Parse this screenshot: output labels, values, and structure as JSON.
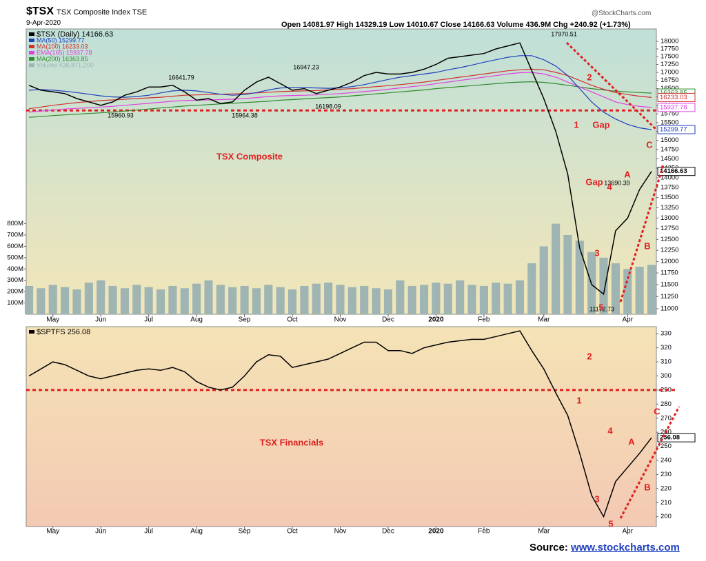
{
  "header": {
    "symbol": "$TSX",
    "name": "TSX Composite Index  TSE",
    "date": "9-Apr-2020",
    "quote": "Open 14081.97  High 14329.19  Low 14010.67  Close 14166.63  Volume 436.9M  Chg +240.92 (+1.73%)",
    "watermark": "@StockCharts.com"
  },
  "footer": {
    "label": "Source:",
    "link": "www.stockcharts.com"
  },
  "chart_data": [
    {
      "type": "line",
      "log": true,
      "grid": false,
      "categories": [
        null,
        null,
        "May",
        null,
        null,
        null,
        "Jun",
        null,
        null,
        null,
        "Jul",
        null,
        null,
        null,
        "Aug",
        null,
        null,
        null,
        "Sep",
        null,
        null,
        null,
        "Oct",
        null,
        null,
        null,
        "Nov",
        null,
        null,
        null,
        "Dec",
        null,
        null,
        null,
        "2020",
        null,
        null,
        null,
        "Feb",
        null,
        null,
        null,
        null,
        "Mar",
        null,
        null,
        null,
        null,
        null,
        null,
        "Apr",
        null,
        null
      ],
      "ylim": [
        10889,
        18416
      ],
      "yticks": [
        11000,
        11250,
        11500,
        11750,
        12000,
        12250,
        12500,
        12750,
        13000,
        13250,
        13500,
        13750,
        14000,
        14250,
        14500,
        14750,
        15000,
        15250,
        15500,
        15750,
        16000,
        16250,
        16500,
        16750,
        17000,
        17250,
        17500,
        17750,
        18000
      ],
      "y2lim": [
        0,
        2520
      ],
      "y2ticks": [
        {
          "value": 100,
          "label": "100M"
        },
        {
          "value": 200,
          "label": "200M"
        },
        {
          "value": 300,
          "label": "300M"
        },
        {
          "value": 400,
          "label": "400M"
        },
        {
          "value": 500,
          "label": "500M"
        },
        {
          "value": 600,
          "label": "600M"
        },
        {
          "value": 700,
          "label": "700M"
        },
        {
          "value": 800,
          "label": "800M"
        }
      ],
      "reference": 15850,
      "series": [
        {
          "name": "Volume 436,871,200",
          "type": "bar",
          "axis": "y2",
          "color": "#9fb5b4",
          "values": [
            250,
            230,
            260,
            240,
            220,
            280,
            300,
            250,
            230,
            260,
            240,
            220,
            250,
            230,
            270,
            300,
            260,
            240,
            250,
            230,
            260,
            240,
            220,
            250,
            270,
            280,
            260,
            240,
            250,
            230,
            220,
            300,
            250,
            260,
            280,
            270,
            300,
            260,
            250,
            280,
            270,
            300,
            450,
            600,
            800,
            700,
            650,
            550,
            500,
            450,
            400,
            420,
            436.87
          ]
        },
        {
          "name": "MA(200) 16363.85",
          "type": "line",
          "color": "#2e8b2e",
          "values": [
            15650,
            15670,
            15700,
            15720,
            15740,
            15760,
            15780,
            15800,
            15830,
            15860,
            15890,
            15920,
            15950,
            15980,
            16000,
            16020,
            16040,
            16060,
            16080,
            16100,
            16120,
            16150,
            16170,
            16190,
            16210,
            16230,
            16250,
            16280,
            16310,
            16340,
            16370,
            16400,
            16430,
            16460,
            16500,
            16530,
            16560,
            16590,
            16620,
            16650,
            16680,
            16700,
            16710,
            16690,
            16650,
            16600,
            16550,
            16500,
            16460,
            16420,
            16400,
            16380,
            16363.85
          ]
        },
        {
          "name": "EMA(165) 15937.78",
          "type": "line",
          "color": "#e040e0",
          "values": [
            15800,
            15830,
            15860,
            15890,
            15910,
            15930,
            15950,
            15970,
            16000,
            16030,
            16060,
            16090,
            16120,
            16140,
            16150,
            16160,
            16170,
            16180,
            16200,
            16230,
            16260,
            16280,
            16290,
            16300,
            16310,
            16330,
            16350,
            16380,
            16410,
            16440,
            16480,
            16520,
            16560,
            16600,
            16650,
            16700,
            16750,
            16800,
            16850,
            16900,
            16950,
            16990,
            17000,
            16950,
            16850,
            16700,
            16550,
            16400,
            16250,
            16100,
            16020,
            15970,
            15937.78
          ]
        },
        {
          "name": "MA(100) 16233.03",
          "type": "line",
          "color": "#d03030",
          "values": [
            15900,
            15950,
            16000,
            16040,
            16080,
            16110,
            16140,
            16160,
            16180,
            16200,
            16220,
            16240,
            16270,
            16300,
            16310,
            16320,
            16330,
            16340,
            16350,
            16370,
            16390,
            16410,
            16420,
            16430,
            16440,
            16460,
            16480,
            16500,
            16530,
            16560,
            16590,
            16620,
            16660,
            16700,
            16750,
            16800,
            16850,
            16900,
            16950,
            17000,
            17050,
            17080,
            17100,
            17080,
            17000,
            16900,
            16750,
            16600,
            16480,
            16380,
            16320,
            16270,
            16233.03
          ]
        },
        {
          "name": "MA(50) 15299.77",
          "type": "line",
          "color": "#1f3fbf",
          "values": [
            16450,
            16470,
            16450,
            16420,
            16380,
            16330,
            16280,
            16250,
            16240,
            16260,
            16300,
            16370,
            16430,
            16450,
            16430,
            16380,
            16330,
            16300,
            16320,
            16380,
            16460,
            16520,
            16530,
            16530,
            16520,
            16510,
            16520,
            16560,
            16620,
            16700,
            16780,
            16850,
            16900,
            16950,
            17000,
            17080,
            17150,
            17230,
            17320,
            17400,
            17480,
            17530,
            17530,
            17400,
            17200,
            16900,
            16500,
            16100,
            15800,
            15600,
            15450,
            15350,
            15299.77
          ]
        },
        {
          "name": "$TSX (Daily) 14166.63",
          "type": "line",
          "color": "#000000",
          "values": [
            16600,
            16450,
            16400,
            16350,
            16200,
            16100,
            16000,
            16100,
            16300,
            16400,
            16550,
            16550,
            16600,
            16400,
            16150,
            16200,
            16050,
            16100,
            16450,
            16700,
            16850,
            16650,
            16450,
            16500,
            16350,
            16450,
            16550,
            16700,
            16900,
            17000,
            16950,
            16950,
            17000,
            17100,
            17250,
            17450,
            17500,
            17550,
            17600,
            17750,
            17850,
            17950,
            17050,
            16200,
            15250,
            14100,
            12300,
            11500,
            11300,
            12700,
            13000,
            13700,
            14166.63
          ]
        }
      ],
      "annotations": [
        {
          "text": "17970.51",
          "color": "#000000"
        },
        {
          "text": "16641.79",
          "color": "#000000"
        },
        {
          "text": "16947.23",
          "color": "#000000"
        },
        {
          "text": "16198.09",
          "color": "#000000"
        },
        {
          "text": "15960.93",
          "color": "#000000"
        },
        {
          "text": "15964.38",
          "color": "#000000"
        },
        {
          "text": "13690.39",
          "color": "#000000"
        },
        {
          "text": "11172.73",
          "color": "#000000"
        },
        {
          "text": "TSX Composite",
          "color": "#e02020"
        },
        {
          "text": "1",
          "color": "#e02020"
        },
        {
          "text": "Gap",
          "color": "#e02020"
        },
        {
          "text": "Gap",
          "color": "#e02020"
        },
        {
          "text": "2",
          "color": "#e02020"
        },
        {
          "text": "3",
          "color": "#e02020"
        },
        {
          "text": "4",
          "color": "#e02020"
        },
        {
          "text": "5",
          "color": "#e02020"
        },
        {
          "text": "A",
          "color": "#e02020"
        },
        {
          "text": "B",
          "color": "#e02020"
        },
        {
          "text": "C",
          "color": "#e02020"
        }
      ]
    },
    {
      "type": "line",
      "log": false,
      "grid": false,
      "categories": [
        null,
        null,
        "May",
        null,
        null,
        null,
        "Jun",
        null,
        null,
        null,
        "Jul",
        null,
        null,
        null,
        "Aug",
        null,
        null,
        null,
        "Sep",
        null,
        null,
        null,
        "Oct",
        null,
        null,
        null,
        "Nov",
        null,
        null,
        null,
        "Dec",
        null,
        null,
        null,
        "2020",
        null,
        null,
        null,
        "Feb",
        null,
        null,
        null,
        null,
        "Mar",
        null,
        null,
        null,
        null,
        null,
        null,
        "Apr",
        null,
        null
      ],
      "ylim": [
        193,
        335
      ],
      "yticks": [
        200,
        210,
        220,
        230,
        240,
        250,
        260,
        270,
        280,
        290,
        300,
        310,
        320,
        330
      ],
      "reference": 290,
      "series": [
        {
          "name": "$SPTFS 256.08",
          "type": "line",
          "color": "#000000",
          "values": [
            300,
            305,
            310,
            308,
            304,
            300,
            298,
            300,
            302,
            304,
            305,
            304,
            306,
            303,
            296,
            292,
            290,
            292,
            300,
            310,
            315,
            314,
            306,
            308,
            310,
            312,
            316,
            320,
            324,
            324,
            318,
            318,
            316,
            320,
            322,
            324,
            325,
            326,
            326,
            328,
            330,
            332,
            318,
            305,
            288,
            272,
            245,
            215,
            200,
            225,
            235,
            245,
            256.08
          ]
        }
      ],
      "annotations": [
        {
          "text": "TSX Financials",
          "color": "#e02020"
        },
        {
          "text": "1",
          "color": "#e02020"
        },
        {
          "text": "2",
          "color": "#e02020"
        },
        {
          "text": "3",
          "color": "#e02020"
        },
        {
          "text": "4",
          "color": "#e02020"
        },
        {
          "text": "5",
          "color": "#e02020"
        },
        {
          "text": "A",
          "color": "#e02020"
        },
        {
          "text": "B",
          "color": "#e02020"
        },
        {
          "text": "C",
          "color": "#e02020"
        }
      ]
    }
  ]
}
